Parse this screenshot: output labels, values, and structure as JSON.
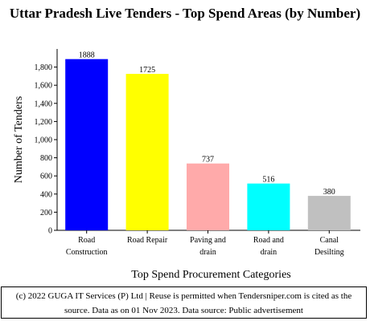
{
  "chart_data": {
    "type": "bar",
    "title": "Uttar Pradesh Live Tenders - Top Spend Areas (by Number)",
    "xlabel": "Top Spend Procurement Categories",
    "ylabel": "Number of Tenders",
    "ylim": [
      0,
      2000
    ],
    "yticks": [
      0,
      200,
      400,
      600,
      800,
      1000,
      1200,
      1400,
      1600,
      1800
    ],
    "ytick_labels": [
      "0",
      "200",
      "400",
      "600",
      "800",
      "1,000",
      "1,200",
      "1,400",
      "1,600",
      "1,800"
    ],
    "categories": [
      [
        "Road",
        "Construction"
      ],
      [
        "Road Repair"
      ],
      [
        "Paving and",
        "drain"
      ],
      [
        "Road and",
        "drain"
      ],
      [
        "Canal",
        "Desilting"
      ]
    ],
    "values": [
      1888,
      1725,
      737,
      516,
      380
    ],
    "value_labels": [
      "1888",
      "1725",
      "737",
      "516",
      "380"
    ],
    "colors": [
      "#0000ff",
      "#ffff00",
      "#ffaaaa",
      "#00ffff",
      "#c0c0c0"
    ],
    "grid": false,
    "legend": "none"
  },
  "footer": {
    "line1": "(c) 2022 GUGA IT Services (P) Ltd | Reuse is permitted when Tendersniper.com is cited as the",
    "line2": "source. Data as on 01 Nov 2023. Data source: Public advertisement"
  }
}
